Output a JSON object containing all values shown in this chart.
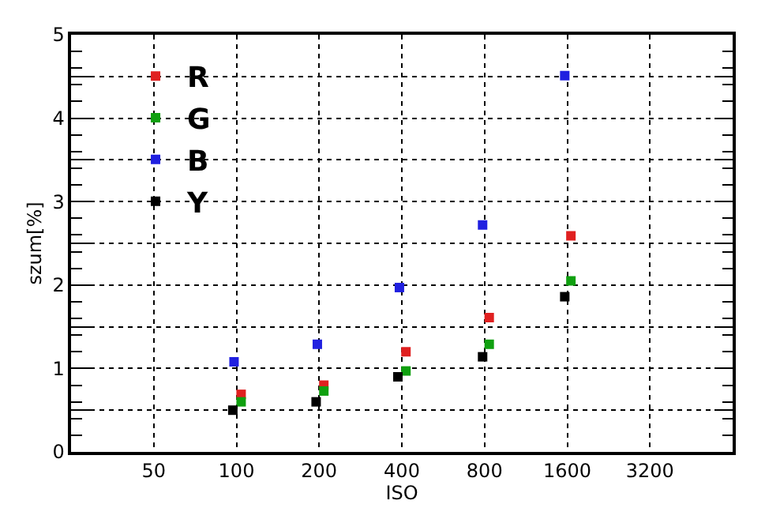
{
  "chart_data": {
    "type": "scatter",
    "xlabel": "ISO",
    "ylabel": "szum[%]",
    "log": "x",
    "marker": "square",
    "grid": true,
    "legend": "top left",
    "xlim": [
      25,
      6400
    ],
    "xticks": [
      50,
      100,
      200,
      400,
      800,
      1600,
      3200
    ],
    "ylim": [
      0,
      5
    ],
    "yticks": [
      0,
      {
        "value": 0.5,
        "label": null
      },
      1,
      {
        "value": 1.5,
        "label": null
      },
      2,
      {
        "value": 2.5,
        "label": null
      },
      3,
      {
        "value": 3.5,
        "label": null
      },
      4,
      {
        "value": 4.5,
        "label": null
      },
      5
    ],
    "series": [
      {
        "name": "R",
        "color": "#e02020",
        "x": [
          104,
          208,
          414,
          832,
          1650
        ],
        "values": [
          0.69,
          0.8,
          1.2,
          1.61,
          2.59
        ]
      },
      {
        "name": "G",
        "color": "#10a010",
        "x": [
          104,
          208,
          414,
          832,
          1650
        ],
        "values": [
          0.6,
          0.73,
          0.97,
          1.29,
          2.05
        ]
      },
      {
        "name": "B",
        "color": "#2020e0",
        "x": [
          98,
          197,
          392,
          787,
          1567
        ],
        "values": [
          1.08,
          1.29,
          1.97,
          2.72,
          4.51
        ]
      },
      {
        "name": "Y",
        "color": "#000000",
        "x": [
          97,
          195,
          387,
          787,
          1567
        ],
        "values": [
          0.5,
          0.6,
          0.9,
          1.14,
          1.86
        ]
      }
    ]
  }
}
